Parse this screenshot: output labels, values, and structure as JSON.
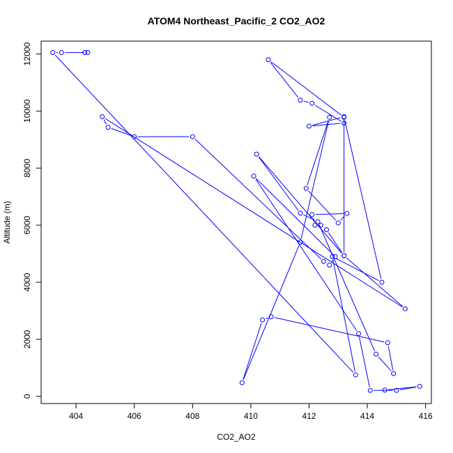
{
  "chart_data": {
    "type": "line",
    "title": "ATOM4 Northeast_Pacific_2 CO2_AO2",
    "xlabel": "CO2_AO2",
    "ylabel": "Altitude (m)",
    "xlim": [
      402.8,
      416.2
    ],
    "ylim": [
      -250,
      12450
    ],
    "xticks": [
      404,
      406,
      408,
      410,
      412,
      414,
      416
    ],
    "yticks": [
      0,
      2000,
      4000,
      6000,
      8000,
      10000,
      12000
    ],
    "series": [
      {
        "color": "#0000ff",
        "marker": "open-circle",
        "x": [
          404.3,
          404.4,
          403.5,
          403.2,
          413.6,
          412.8,
          414.5,
          413.2,
          410.6,
          411.7,
          412.1,
          413.2,
          412.0,
          413.2,
          413.2,
          410.2,
          411.7,
          412.3,
          414.3,
          414.9,
          414.7,
          410.7,
          410.4,
          409.7,
          411.7,
          412.7,
          411.9,
          413.0,
          413.3,
          412.1,
          412.2,
          412.4,
          412.6,
          413.2,
          415.3,
          404.9,
          405.1,
          406.0,
          408.0,
          412.5,
          412.7,
          412.9,
          410.1,
          413.7,
          414.1,
          415.0,
          415.8,
          414.6
        ],
        "y": [
          12050,
          12050,
          12050,
          12050,
          750,
          4900,
          4000,
          9780,
          11800,
          10380,
          10270,
          9580,
          9470,
          9800,
          4930,
          8490,
          6420,
          6120,
          1480,
          800,
          1880,
          2790,
          2680,
          480,
          5400,
          9780,
          7290,
          6080,
          6410,
          6370,
          6000,
          6000,
          5840,
          4930,
          3070,
          9800,
          9430,
          9100,
          9100,
          4730,
          4600,
          4900,
          7720,
          2200,
          210,
          210,
          350,
          220
        ]
      }
    ]
  }
}
